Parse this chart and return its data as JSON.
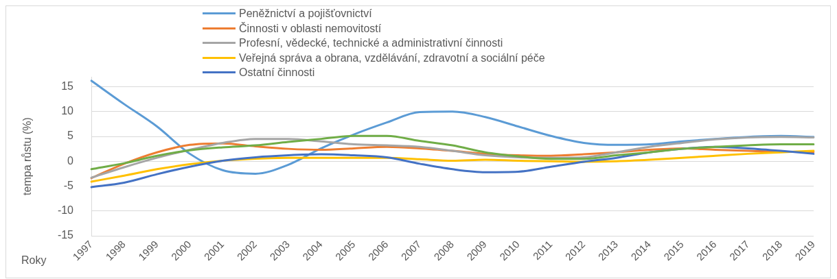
{
  "chart_data": {
    "type": "line",
    "xlabel": "Roky",
    "ylabel": "tempa růstu (%)",
    "categories": [
      "1997",
      "1998",
      "1999",
      "2000",
      "2001",
      "2002",
      "2003",
      "2004",
      "2005",
      "2006",
      "2007",
      "2008",
      "2009",
      "2010",
      "2011",
      "2012",
      "2013",
      "2014",
      "2015",
      "2016",
      "2017",
      "2018",
      "2019"
    ],
    "series": [
      {
        "name": "Peněžnictví a pojišťovnictví",
        "color": "#5b9bd5",
        "values": [
          16.2,
          11.5,
          7,
          1.5,
          -1.8,
          -2.5,
          -0.7,
          2.6,
          5.4,
          7.8,
          9.9,
          10,
          8.9,
          7,
          5.1,
          3.7,
          3.3,
          3.4,
          4,
          4.5,
          4.9,
          5.1,
          4.9
        ]
      },
      {
        "name": "Činnosti v oblasti nemovitostí",
        "color": "#ed7d31",
        "values": [
          -3.4,
          -0.5,
          1.8,
          3.3,
          3.6,
          3,
          2.5,
          2.3,
          2.6,
          2.9,
          2.6,
          2.1,
          1.5,
          1.2,
          1.1,
          1.4,
          1.8,
          2.3,
          2.6,
          2.3,
          2.1,
          1.9,
          1.9
        ]
      },
      {
        "name": "Profesní, vědecké, technické a administrativní činnosti",
        "color": "#a5a5a5",
        "values": [
          -3.3,
          -1.2,
          0.7,
          2.3,
          3.7,
          4.5,
          4.5,
          4,
          3.4,
          3.2,
          2.9,
          2.1,
          1.2,
          0.8,
          0.7,
          0.8,
          1.8,
          2.9,
          3.7,
          4.4,
          4.8,
          4.9,
          4.8
        ]
      },
      {
        "name": "Veřejná správa a obrana, vzdělávání, zdravotní a sociální péče",
        "color": "#ffc000",
        "values": [
          -4.1,
          -2.9,
          -1.6,
          -0.6,
          0.1,
          0.5,
          0.7,
          0.7,
          0.7,
          0.7,
          0.4,
          0.1,
          0.3,
          0.1,
          0,
          -0.1,
          0,
          0.3,
          0.7,
          1.1,
          1.5,
          1.8,
          2.1
        ]
      },
      {
        "name": "Ostatní činnosti",
        "color": "#4472c4",
        "values": [
          -5.2,
          -4.3,
          -2.6,
          -1.1,
          0.1,
          0.8,
          1.2,
          1.4,
          1.2,
          0.8,
          -0.5,
          -1.6,
          -2.2,
          -2.1,
          -1.1,
          -0.1,
          0.7,
          1.8,
          2.5,
          2.9,
          2.6,
          2.1,
          1.5
        ]
      },
      {
        "color": "#70ad47",
        "values": [
          -1.6,
          -0.4,
          1.1,
          2.2,
          2.8,
          3.2,
          3.9,
          4.5,
          5.1,
          5.1,
          4.1,
          3.2,
          1.8,
          1,
          0.5,
          0.5,
          1.2,
          1.8,
          2.5,
          2.9,
          3.2,
          3.4,
          3.4
        ]
      }
    ],
    "ylim": [
      -15,
      17
    ],
    "yticks": [
      -15,
      -10,
      -5,
      0,
      5,
      10,
      15
    ],
    "grid": "y",
    "legend": "top"
  }
}
